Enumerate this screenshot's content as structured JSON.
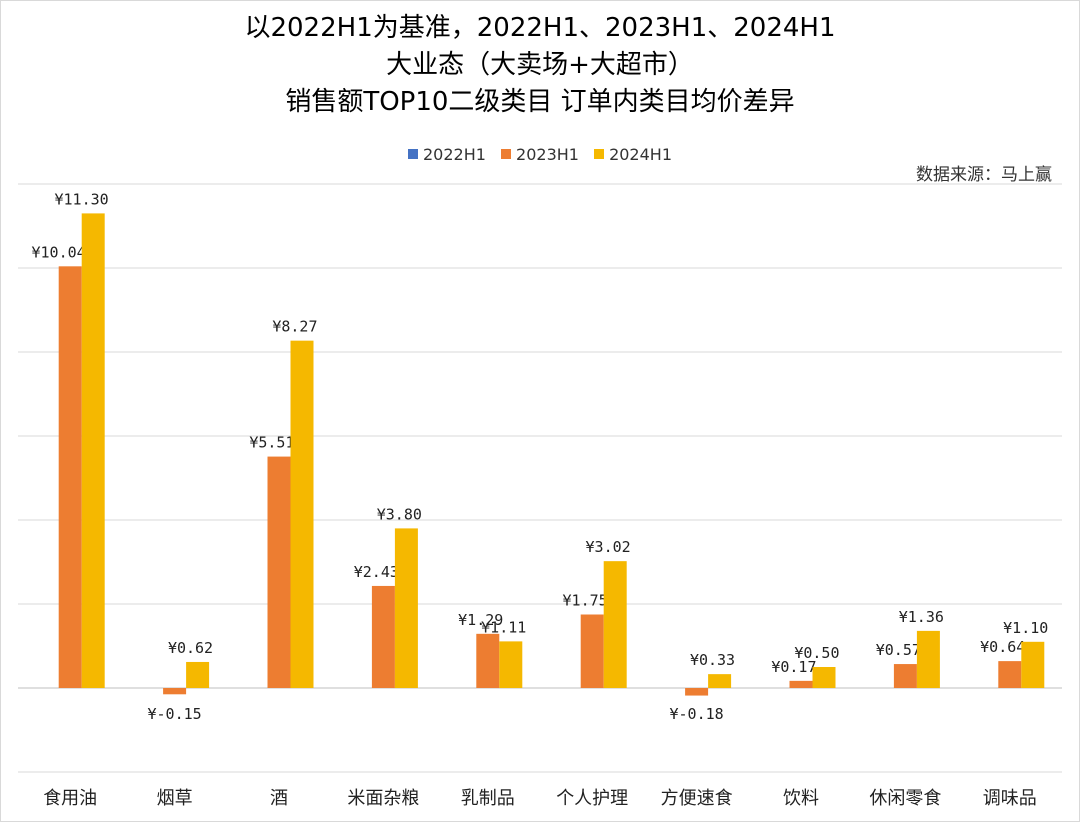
{
  "title_lines": [
    "以2022H1为基准，2022H1、2023H1、2024H1",
    "大业态（大卖场+大超市）",
    "销售额TOP10二级类目 订单内类目均价差异"
  ],
  "source_note": "数据来源：马上赢",
  "chart_data": {
    "type": "bar",
    "title": "以2022H1为基准，2022H1、2023H1、2024H1 大业态（大卖场+大超市） 销售额TOP10二级类目 订单内类目均价差异",
    "categories": [
      "食用油",
      "烟草",
      "酒",
      "米面杂粮",
      "乳制品",
      "个人护理",
      "方便速食",
      "饮料",
      "休闲零食",
      "调味品"
    ],
    "series": [
      {
        "name": "2022H1",
        "color": "#4472C4",
        "values": [
          0,
          0,
          0,
          0,
          0,
          0,
          0,
          0,
          0,
          0
        ],
        "labels": [
          "",
          "",
          "",
          "",
          "",
          "",
          "",
          "",
          "",
          ""
        ]
      },
      {
        "name": "2023H1",
        "color": "#ED7D31",
        "values": [
          10.04,
          -0.15,
          5.51,
          2.43,
          1.29,
          1.75,
          -0.18,
          0.17,
          0.57,
          0.64
        ],
        "labels": [
          "¥10.04",
          "¥-0.15",
          "¥5.51",
          "¥2.43",
          "¥1.29",
          "¥1.75",
          "¥-0.18",
          "¥0.17",
          "¥0.57",
          "¥0.64"
        ]
      },
      {
        "name": "2024H1",
        "color": "#F5B800",
        "values": [
          11.3,
          0.62,
          8.27,
          3.8,
          1.11,
          3.02,
          0.33,
          0.5,
          1.36,
          1.1
        ],
        "labels": [
          "¥11.30",
          "¥0.62",
          "¥8.27",
          "¥3.80",
          "¥1.11",
          "¥3.02",
          "¥0.33",
          "¥0.50",
          "¥1.36",
          "¥1.10"
        ]
      }
    ],
    "ylim": [
      -2,
      12
    ],
    "grid": true,
    "legend_position": "top"
  }
}
